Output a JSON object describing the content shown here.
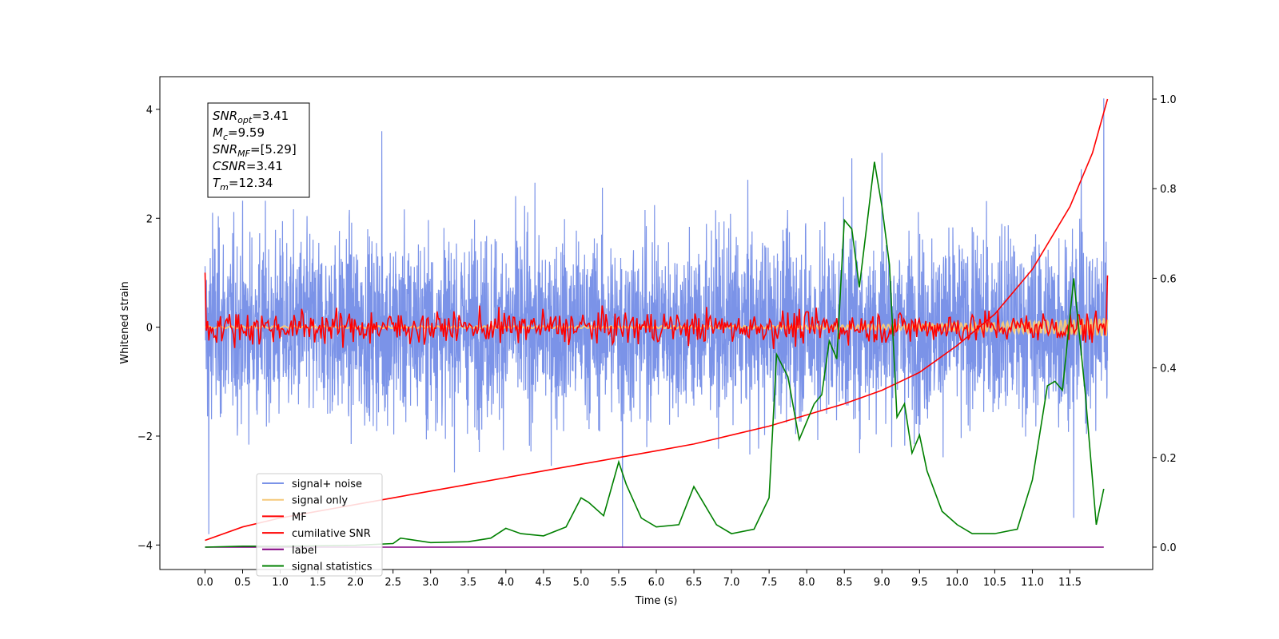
{
  "chart_data": {
    "type": "line",
    "xlabel": "Time (s)",
    "ylabel": "Whitened strain",
    "xlim": [
      -0.6,
      12.6
    ],
    "ylim": [
      -4.45,
      4.6
    ],
    "y2lim": [
      -0.05,
      1.05
    ],
    "x_ticks": [
      "0.0",
      "0.5",
      "1.0",
      "1.5",
      "2.0",
      "2.5",
      "3.0",
      "3.5",
      "4.0",
      "4.5",
      "5.0",
      "5.5",
      "6.0",
      "6.5",
      "7.0",
      "7.5",
      "8.0",
      "8.5",
      "9.0",
      "9.5",
      "10.0",
      "10.5",
      "11.0",
      "11.5"
    ],
    "y_ticks": [
      "−4",
      "−2",
      "0",
      "2",
      "4"
    ],
    "y2_ticks": [
      "0.0",
      "0.2",
      "0.4",
      "0.6",
      "0.8",
      "1.0"
    ],
    "grid": false,
    "legend_position": "lower left",
    "info_box": {
      "lines": [
        {
          "label": "SNR",
          "sub": "opt",
          "value": "=3.41"
        },
        {
          "label": "M",
          "sub": "c",
          "value": "=9.59"
        },
        {
          "label": "SNR",
          "sub": "MF",
          "value": "=[5.29]"
        },
        {
          "label": "CSNR",
          "sub": "",
          "value": "=3.41"
        },
        {
          "label": "T",
          "sub": "m",
          "value": "=12.34"
        }
      ]
    },
    "series": [
      {
        "name": "signal+ noise",
        "color": "#7b93e8",
        "axis": "left",
        "kind": "noise",
        "x_range": [
          0.0,
          12.0
        ],
        "std": 1.0,
        "spikes": [
          [
            0.05,
            -3.8
          ],
          [
            0.1,
            2.1
          ],
          [
            2.35,
            3.6
          ],
          [
            5.55,
            -4.05
          ],
          [
            8.6,
            3.1
          ],
          [
            9.0,
            3.2
          ],
          [
            11.55,
            -3.5
          ],
          [
            11.65,
            2.9
          ],
          [
            11.95,
            4.2
          ]
        ]
      },
      {
        "name": "signal only",
        "color": "#f5c97a",
        "axis": "left",
        "kind": "chirp",
        "x_range": [
          0.0,
          12.0
        ]
      },
      {
        "name": "MF",
        "color": "#ff0000",
        "axis": "left",
        "kind": "mf",
        "x_range": [
          0.0,
          12.0
        ],
        "start": 1.0,
        "end": 0.95,
        "std": 0.15
      },
      {
        "name": "cumilative SNR",
        "color": "#ff0000",
        "axis": "right",
        "x": [
          0.0,
          0.5,
          1.0,
          1.5,
          2.0,
          2.5,
          3.0,
          3.5,
          4.0,
          4.5,
          5.0,
          5.5,
          6.0,
          6.5,
          7.0,
          7.5,
          8.0,
          8.5,
          9.0,
          9.5,
          10.0,
          10.5,
          11.0,
          11.5,
          11.8,
          12.0
        ],
        "values": [
          0.015,
          0.045,
          0.065,
          0.08,
          0.095,
          0.11,
          0.125,
          0.14,
          0.155,
          0.17,
          0.185,
          0.2,
          0.215,
          0.23,
          0.25,
          0.27,
          0.295,
          0.32,
          0.35,
          0.39,
          0.45,
          0.52,
          0.62,
          0.76,
          0.88,
          1.0
        ]
      },
      {
        "name": "label",
        "color": "#800080",
        "axis": "right",
        "x": [
          0.0,
          11.95
        ],
        "values": [
          0.0,
          0.0
        ]
      },
      {
        "name": "signal statistics",
        "color": "#008000",
        "axis": "right",
        "x": [
          0.0,
          0.5,
          1.0,
          1.5,
          2.0,
          2.5,
          2.6,
          3.0,
          3.5,
          3.8,
          4.0,
          4.2,
          4.5,
          4.8,
          5.0,
          5.1,
          5.3,
          5.5,
          5.6,
          5.8,
          6.0,
          6.3,
          6.5,
          6.8,
          7.0,
          7.3,
          7.5,
          7.6,
          7.75,
          7.9,
          8.0,
          8.1,
          8.2,
          8.3,
          8.4,
          8.5,
          8.6,
          8.7,
          8.8,
          8.9,
          9.0,
          9.1,
          9.2,
          9.3,
          9.4,
          9.5,
          9.6,
          9.8,
          10.0,
          10.2,
          10.5,
          10.8,
          11.0,
          11.2,
          11.3,
          11.4,
          11.55,
          11.7,
          11.85,
          11.95
        ],
        "values": [
          0.0,
          0.002,
          0.002,
          0.003,
          0.004,
          0.008,
          0.02,
          0.01,
          0.012,
          0.02,
          0.042,
          0.03,
          0.025,
          0.045,
          0.11,
          0.1,
          0.07,
          0.19,
          0.14,
          0.065,
          0.045,
          0.05,
          0.135,
          0.05,
          0.03,
          0.04,
          0.11,
          0.43,
          0.38,
          0.24,
          0.28,
          0.32,
          0.34,
          0.46,
          0.42,
          0.73,
          0.71,
          0.58,
          0.72,
          0.86,
          0.76,
          0.63,
          0.29,
          0.32,
          0.21,
          0.25,
          0.17,
          0.08,
          0.05,
          0.03,
          0.03,
          0.04,
          0.15,
          0.36,
          0.37,
          0.35,
          0.6,
          0.35,
          0.05,
          0.13
        ]
      }
    ]
  }
}
